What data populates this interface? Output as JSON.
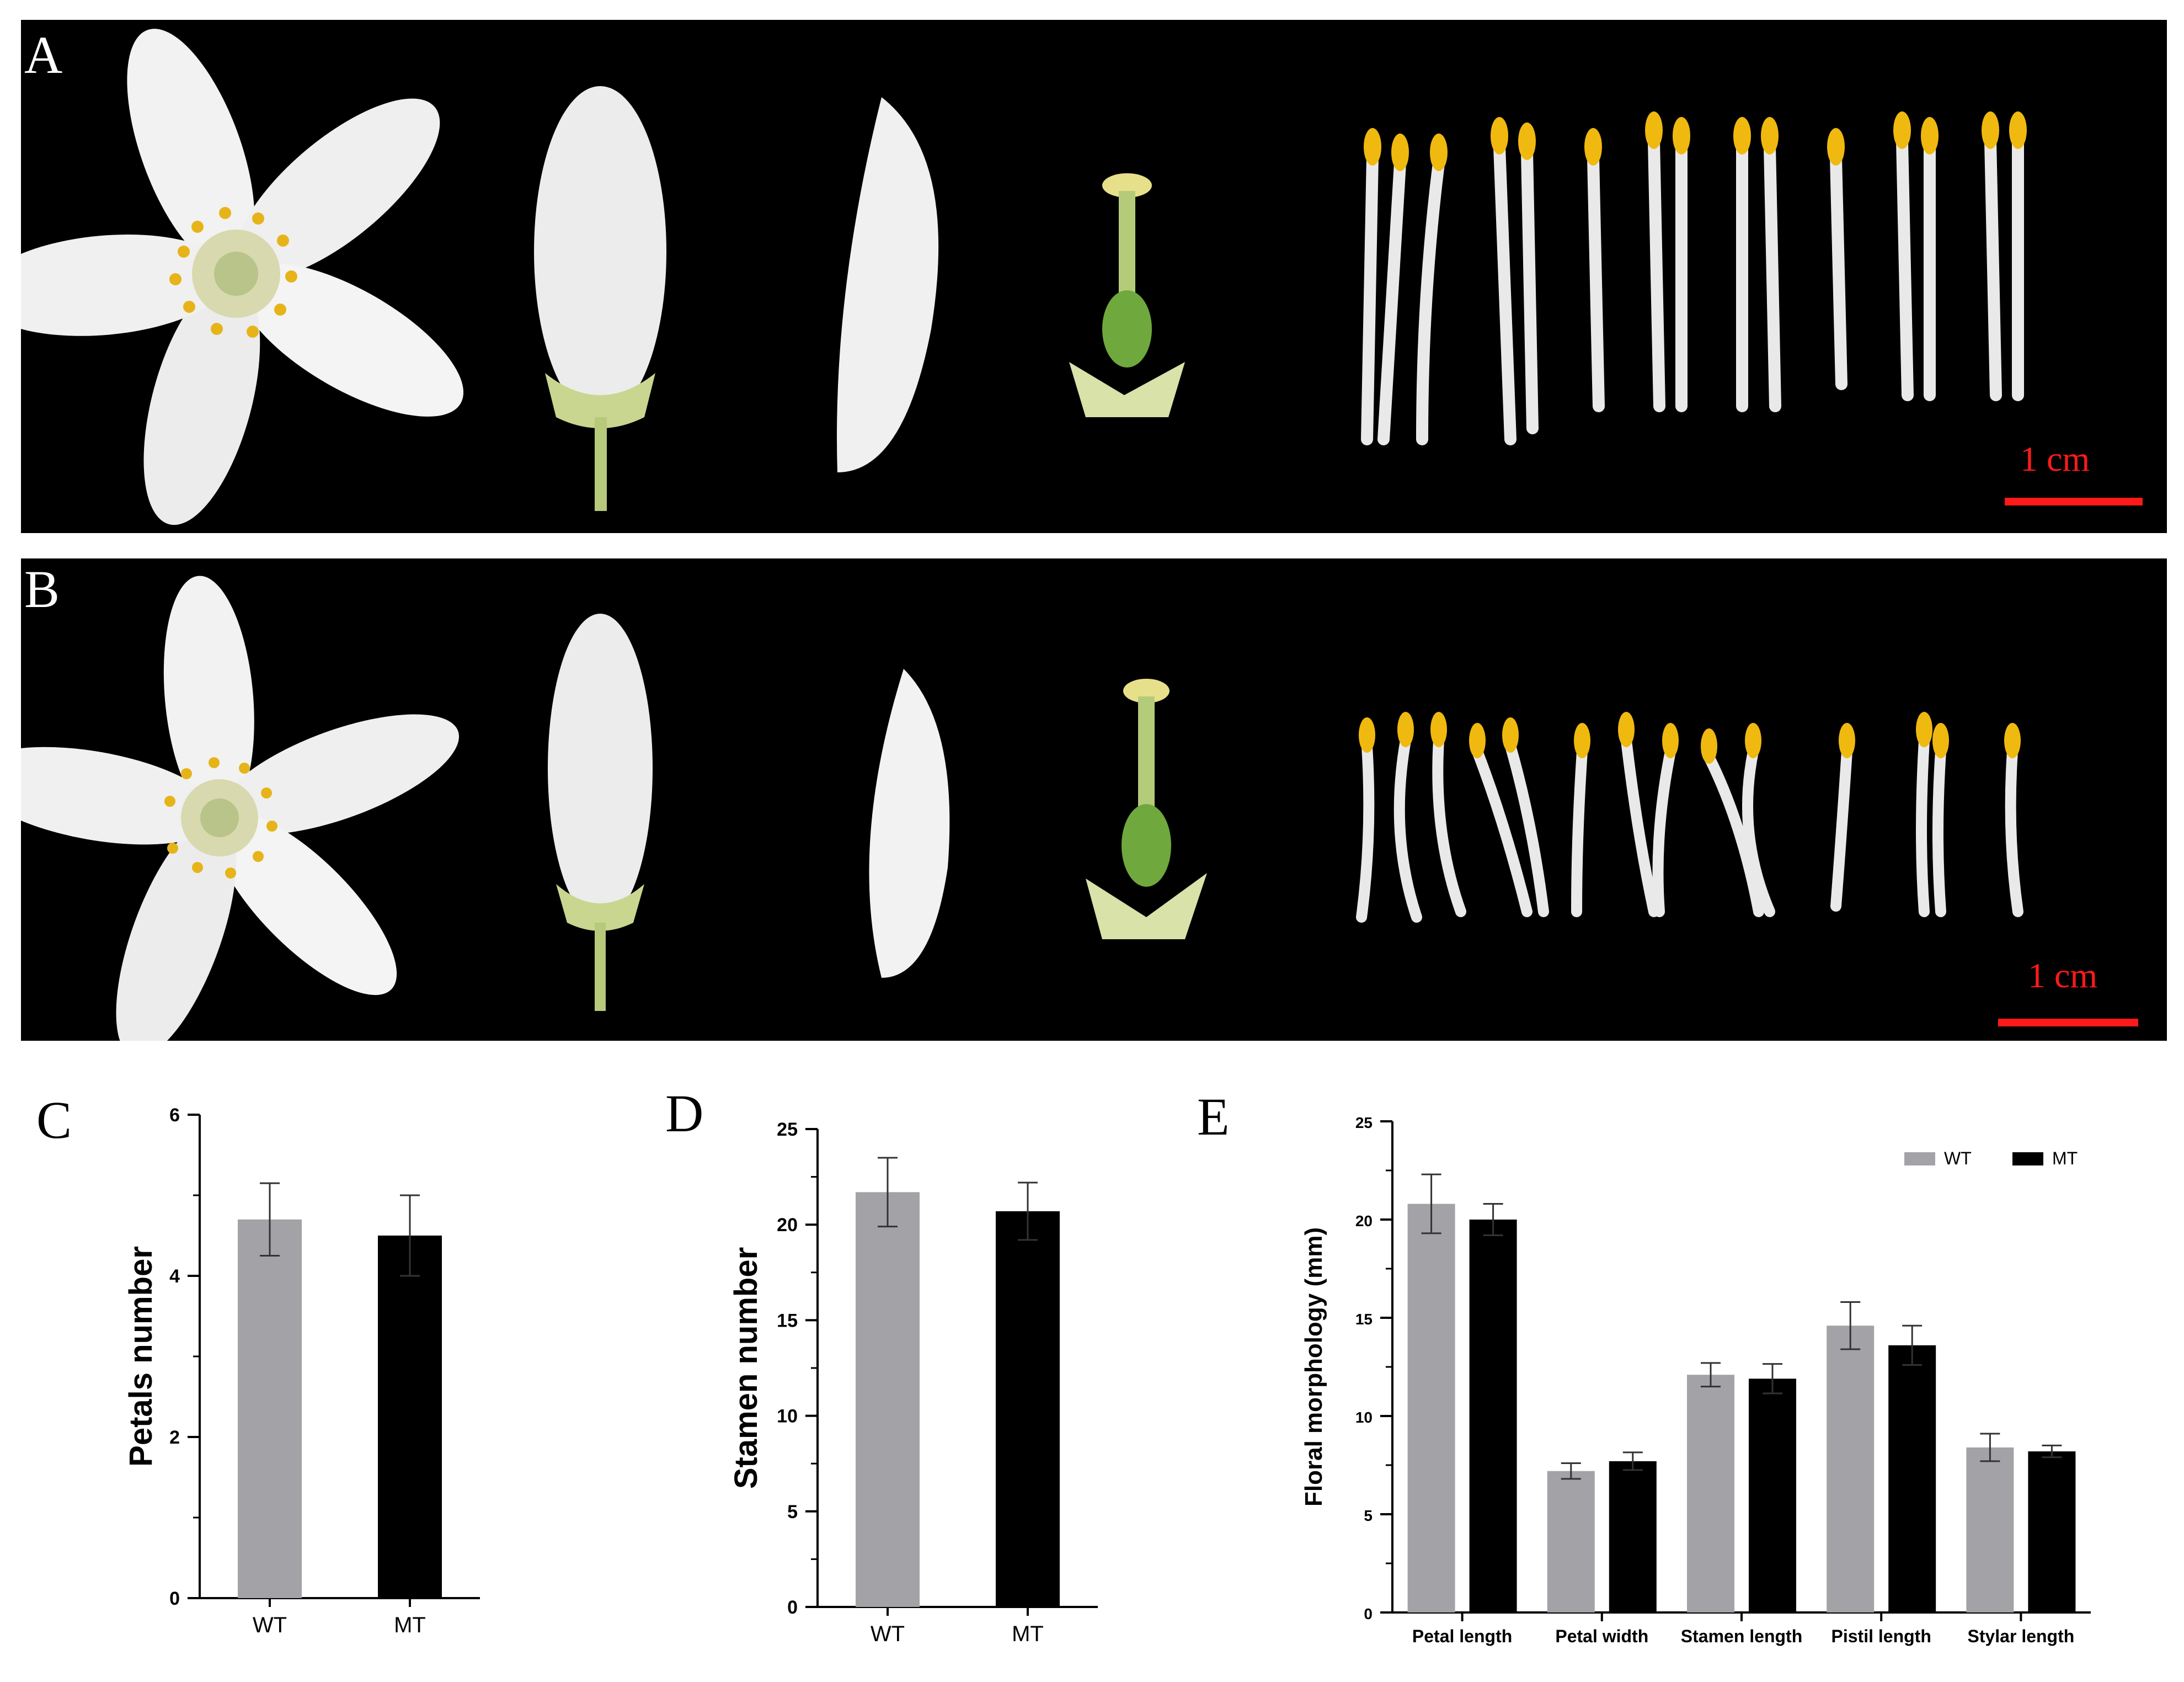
{
  "panels": {
    "A": {
      "letter": "A",
      "scale_label": "1 cm"
    },
    "B": {
      "letter": "B",
      "scale_label": "1 cm"
    }
  },
  "colors": {
    "wt": "#a3a3a7",
    "mt": "#000000",
    "scale_bar": "#ff1a1a",
    "background_strip": "#000000"
  },
  "chart_data": [
    {
      "panel_letter": "C",
      "type": "bar",
      "categories": [
        "WT",
        "MT"
      ],
      "values": [
        4.7,
        4.5
      ],
      "errors": [
        0.45,
        0.5
      ],
      "ylabel": "Petals number",
      "ylim": [
        0,
        6
      ],
      "yticks": [
        0,
        2,
        4,
        6
      ],
      "grid": false
    },
    {
      "panel_letter": "D",
      "type": "bar",
      "categories": [
        "WT",
        "MT"
      ],
      "values": [
        21.7,
        20.7
      ],
      "errors": [
        1.8,
        1.5
      ],
      "ylabel": "Stamen number",
      "ylim": [
        0,
        25
      ],
      "yticks": [
        0,
        5,
        10,
        15,
        20,
        25
      ],
      "grid": false
    },
    {
      "panel_letter": "E",
      "type": "bar",
      "categories": [
        "Petal length",
        "Petal width",
        "Stamen length",
        "Pistil length",
        "Stylar length"
      ],
      "series": [
        {
          "name": "WT",
          "values": [
            20.8,
            7.2,
            12.1,
            14.6,
            8.4
          ],
          "errors": [
            1.5,
            0.4,
            0.6,
            1.2,
            0.7
          ]
        },
        {
          "name": "MT",
          "values": [
            20.0,
            7.7,
            11.9,
            13.6,
            8.2
          ],
          "errors": [
            0.8,
            0.45,
            0.75,
            1.0,
            0.3
          ]
        }
      ],
      "ylabel": "Floral morphology (mm)",
      "ylim": [
        0,
        25
      ],
      "yticks": [
        0,
        5,
        10,
        15,
        20,
        25
      ],
      "legend_position": "top-right",
      "grid": false
    }
  ]
}
